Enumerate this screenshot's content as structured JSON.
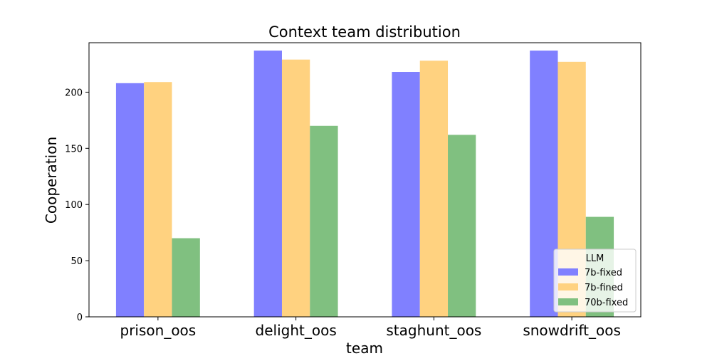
{
  "chart_data": {
    "type": "bar",
    "title": "Context team distribution",
    "xlabel": "team",
    "ylabel": "Cooperation",
    "categories": [
      "prison_oos",
      "delight_oos",
      "staghunt_oos",
      "snowdrift_oos"
    ],
    "series": [
      {
        "name": "7b-fixed",
        "values": [
          208,
          237,
          218,
          237
        ],
        "color": "#8080ff"
      },
      {
        "name": "7b-fined",
        "values": [
          209,
          229,
          228,
          227
        ],
        "color": "#ffd280"
      },
      {
        "name": "70b-fixed",
        "values": [
          70,
          170,
          162,
          89
        ],
        "color": "#80c080"
      }
    ],
    "ylim": [
      0,
      244
    ],
    "yticks": [
      0,
      50,
      100,
      150,
      200
    ],
    "legend": {
      "title": "LLM",
      "placement": "lower-right"
    },
    "grid": false
  }
}
